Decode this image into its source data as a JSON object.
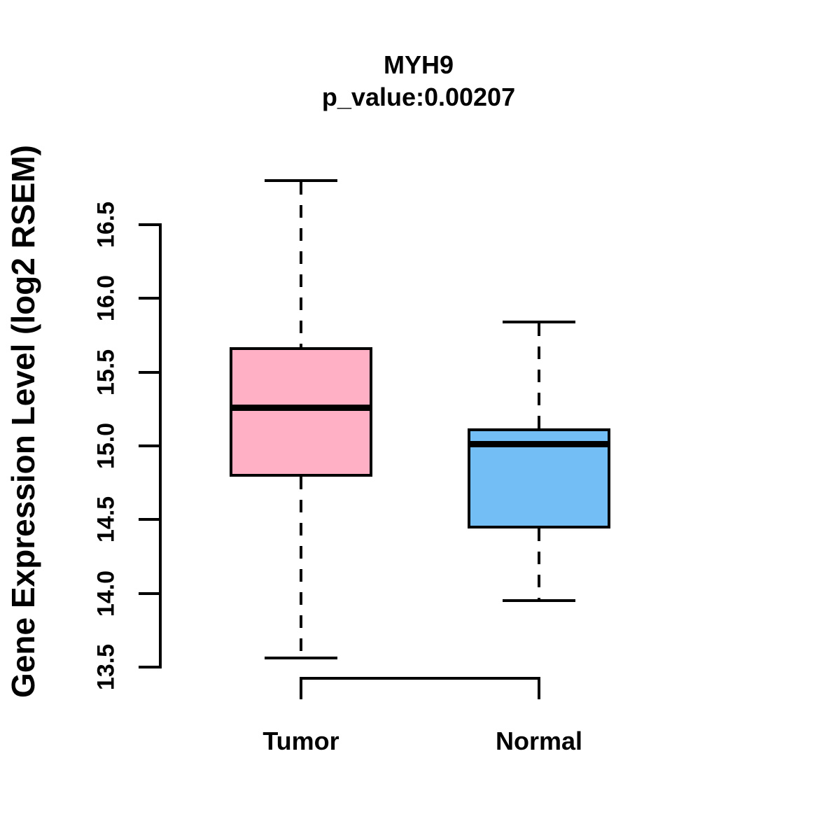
{
  "figure": {
    "background": "#FFFFFF",
    "text_color": "#000000"
  },
  "chart_data": {
    "type": "boxplot",
    "title": "MYH9",
    "subtitle": "p_value:0.00207",
    "ylabel": "Gene Expression Level (log2 RSEM)",
    "categories": [
      "Tumor",
      "Normal"
    ],
    "series": [
      {
        "name": "Tumor",
        "fill_color": "#FFB0C4",
        "min": 13.56,
        "q1": 14.79,
        "median": 15.26,
        "q3": 15.67,
        "max": 16.8
      },
      {
        "name": "Normal",
        "fill_color": "#73BFF5",
        "min": 13.95,
        "q1": 14.44,
        "median": 15.01,
        "q3": 15.12,
        "max": 15.84
      }
    ],
    "ylim": [
      13.5,
      16.5
    ],
    "y_tick_labels": [
      "13.5",
      "14.0",
      "14.5",
      "15.0",
      "15.5",
      "16.0",
      "16.5"
    ],
    "grid": false,
    "legend": "none",
    "whisker_style": "dashed",
    "line_color": "#000000"
  }
}
